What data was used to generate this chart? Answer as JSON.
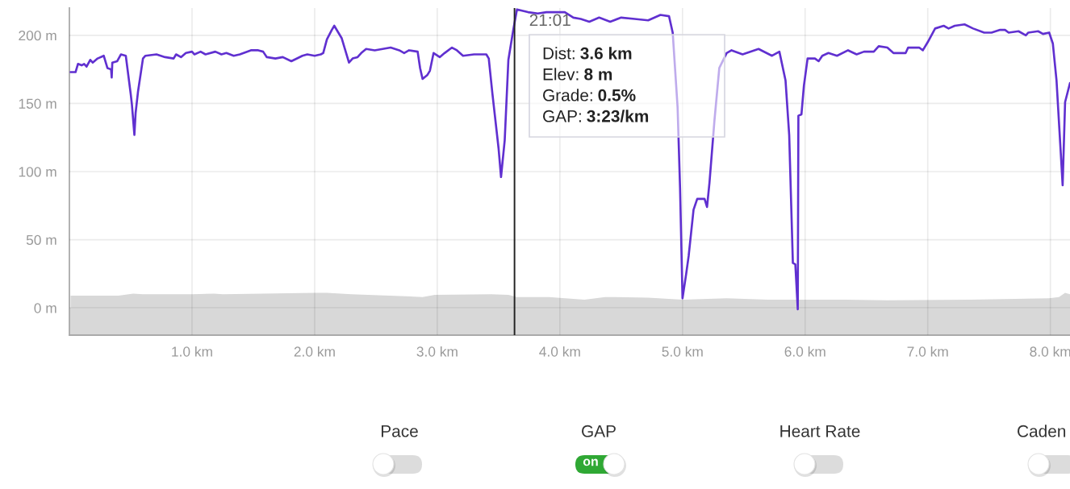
{
  "chart_data": {
    "type": "line",
    "xlim": [
      0,
      8.16
    ],
    "ylim": [
      -20,
      220
    ],
    "xticks": [
      {
        "value": 1,
        "label": "1.0 km"
      },
      {
        "value": 2,
        "label": "2.0 km"
      },
      {
        "value": 3,
        "label": "3.0 km"
      },
      {
        "value": 4,
        "label": "4.0 km"
      },
      {
        "value": 5,
        "label": "5.0 km"
      },
      {
        "value": 6,
        "label": "6.0 km"
      },
      {
        "value": 7,
        "label": "7.0 km"
      },
      {
        "value": 8,
        "label": "8.0 km"
      }
    ],
    "yticks": [
      {
        "value": 0,
        "label": "0 m"
      },
      {
        "value": 50,
        "label": "50 m"
      },
      {
        "value": 100,
        "label": "100 m"
      },
      {
        "value": 150,
        "label": "150 m"
      },
      {
        "value": 200,
        "label": "200 m"
      }
    ],
    "grid": true,
    "series": [
      {
        "type": "area",
        "color": "#d8d8d8",
        "x": [
          0.01,
          0.4,
          0.52,
          0.6,
          1.0,
          1.18,
          1.25,
          2.0,
          2.1,
          2.3,
          2.88,
          2.98,
          3.44,
          3.58,
          3.65,
          3.91,
          4.2,
          4.37,
          4.72,
          5.0,
          5.36,
          5.7,
          6.33,
          6.67,
          7.34,
          7.99,
          8.07,
          8.12,
          8.16
        ],
        "values": [
          9,
          9,
          10.5,
          10,
          10,
          10.5,
          10,
          11,
          11,
          10,
          8,
          9.5,
          10,
          9.5,
          8,
          8,
          6,
          8,
          7.5,
          6,
          7,
          6,
          6,
          5.5,
          6,
          7,
          8,
          11,
          10
        ]
      },
      {
        "color": "#6030d0",
        "x": [
          0.01,
          0.05,
          0.07,
          0.1,
          0.12,
          0.14,
          0.17,
          0.19,
          0.23,
          0.28,
          0.31,
          0.34,
          0.345,
          0.35,
          0.39,
          0.42,
          0.46,
          0.5,
          0.51,
          0.53,
          0.54,
          0.56,
          0.6,
          0.62,
          0.71,
          0.78,
          0.85,
          0.87,
          0.91,
          0.95,
          1.0,
          1.02,
          1.07,
          1.11,
          1.19,
          1.24,
          1.28,
          1.34,
          1.39,
          1.48,
          1.54,
          1.58,
          1.61,
          1.68,
          1.74,
          1.81,
          1.9,
          1.94,
          2.0,
          2.05,
          2.07,
          2.1,
          2.14,
          2.16,
          2.22,
          2.28,
          2.31,
          2.35,
          2.38,
          2.42,
          2.49,
          2.62,
          2.69,
          2.73,
          2.77,
          2.84,
          2.86,
          2.88,
          2.92,
          2.94,
          2.97,
          3.02,
          3.06,
          3.12,
          3.16,
          3.21,
          3.3,
          3.4,
          3.42,
          3.45,
          3.5,
          3.52,
          3.55,
          3.58,
          3.62,
          3.65,
          3.74,
          3.82,
          3.89,
          3.98,
          4.04,
          4.11,
          4.17,
          4.24,
          4.32,
          4.41,
          4.5,
          4.61,
          4.72,
          4.82,
          4.89,
          4.92,
          4.96,
          4.98,
          5.0,
          5.03,
          5.05,
          5.09,
          5.12,
          5.18,
          5.2,
          5.22,
          5.26,
          5.3,
          5.36,
          5.4,
          5.49,
          5.62,
          5.73,
          5.79,
          5.84,
          5.87,
          5.9,
          5.92,
          5.94,
          5.945,
          5.97,
          5.99,
          6.02,
          6.08,
          6.11,
          6.14,
          6.19,
          6.26,
          6.35,
          6.42,
          6.48,
          6.56,
          6.6,
          6.67,
          6.72,
          6.77,
          6.82,
          6.84,
          6.93,
          6.96,
          7.0,
          7.06,
          7.13,
          7.17,
          7.22,
          7.3,
          7.37,
          7.46,
          7.52,
          7.59,
          7.63,
          7.66,
          7.74,
          7.8,
          7.82,
          7.9,
          7.94,
          7.99,
          8.02,
          8.05,
          8.08,
          8.1,
          8.12,
          8.16
        ],
        "values": [
          173,
          173,
          179,
          178,
          179,
          177,
          182,
          180,
          183,
          185,
          176,
          175,
          169,
          180,
          181,
          186,
          185,
          157,
          149,
          127,
          143,
          159,
          183,
          185,
          186,
          184,
          183,
          186,
          184,
          187,
          188,
          186,
          188,
          186,
          188,
          186,
          187,
          185,
          186,
          189,
          189,
          188,
          184,
          183,
          184,
          181,
          185,
          186,
          185,
          186,
          187,
          197,
          204,
          207,
          198,
          180,
          183,
          184,
          187,
          190,
          189,
          191,
          189,
          187,
          189,
          188,
          176,
          168,
          171,
          174,
          187,
          184,
          187,
          191,
          189,
          185,
          186,
          186,
          183,
          157,
          117,
          96,
          123,
          182,
          204,
          219,
          217,
          216,
          217,
          217,
          217,
          213,
          212,
          210,
          213,
          210,
          213,
          212,
          211,
          215,
          214,
          202,
          147,
          88,
          7,
          25,
          38,
          72,
          80,
          80,
          74,
          92,
          137,
          176,
          187,
          189,
          186,
          190,
          185,
          188,
          167,
          127,
          33,
          32,
          -1,
          141,
          142,
          163,
          183,
          183,
          181,
          185,
          187,
          185,
          189,
          186,
          188,
          188,
          192,
          191,
          187,
          187,
          187,
          191,
          191,
          189,
          195,
          205,
          207,
          205,
          207,
          208,
          205,
          202,
          202,
          204,
          204,
          202,
          203,
          200,
          202,
          203,
          201,
          202,
          194,
          167,
          121,
          90,
          151,
          165
        ]
      }
    ],
    "bands": [
      {
        "axis": "y",
        "from": -20,
        "to": 0,
        "color": "#d8d8d8"
      }
    ],
    "ref_lines": [
      {
        "axis": "x",
        "value": 3.63,
        "color": "#222222"
      }
    ],
    "annotations": [
      "21:01",
      "Dist: 3.6 km",
      "Elev: 8 m",
      "Grade: 0.5%",
      "GAP: 3:23/km",
      "Pace",
      "GAP",
      "on",
      "Heart Rate",
      "Caden"
    ]
  }
}
